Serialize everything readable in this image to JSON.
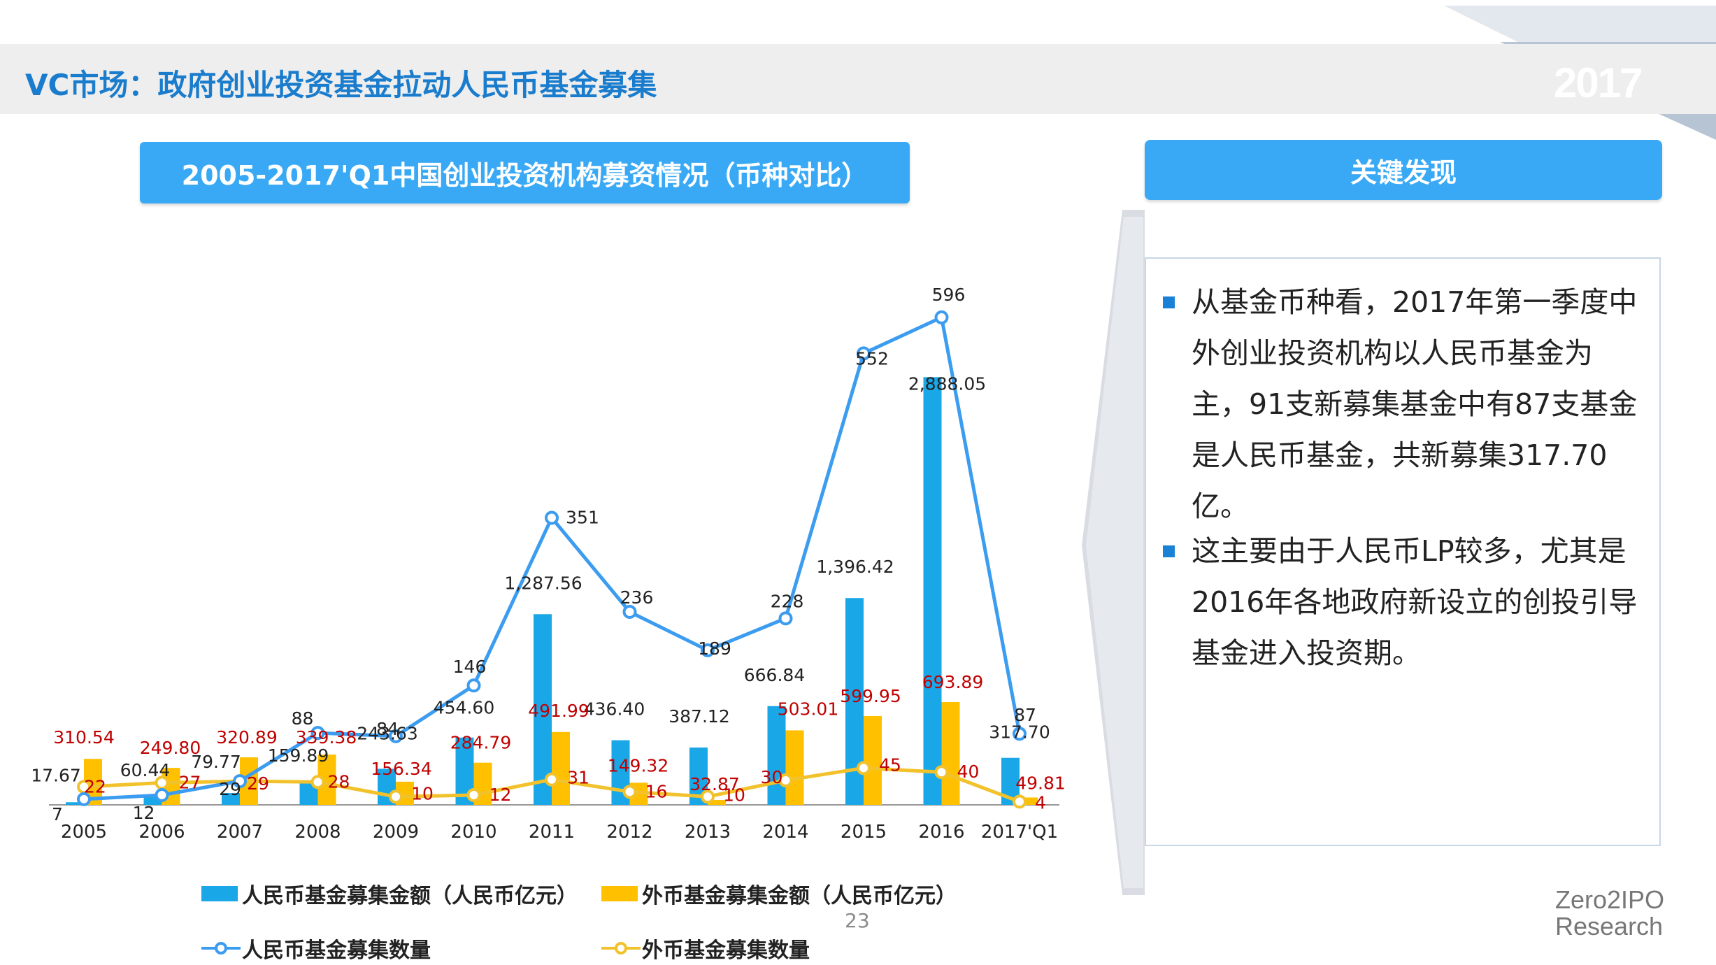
{
  "header": {
    "title": "VC市场：政府创业投资基金拉动人民币基金募集",
    "year": "2017"
  },
  "chart_title": "2005-2017'Q1中国创业投资机构募资情况（币种对比）",
  "findings": {
    "heading": "关键发现",
    "bullets": [
      "从基金币种看，2017年第一季度中外创业投资机构以人民币基金为主，91支新募集基金中有87支基金是人民币基金，共新募集317.70亿。",
      "这主要由于人民币LP较多，尤其是2016年各地政府新设立的创投引导基金进入投资期。"
    ]
  },
  "page_number": "23",
  "brand": {
    "line1": "Zero2IPO",
    "line2": "Research"
  },
  "colors": {
    "rmb": "#19a7e8",
    "foreign": "#ffc000",
    "rmb_count_line": "#3b9cf0",
    "foreign_count_line": "#f2c22d",
    "foreign_label": "#c00000",
    "title_blue": "#1a7ccc",
    "box_blue": "#39a9f5"
  },
  "chart_data": {
    "type": "bar",
    "categories": [
      "2005",
      "2006",
      "2007",
      "2008",
      "2009",
      "2010",
      "2011",
      "2012",
      "2013",
      "2014",
      "2015",
      "2016",
      "2017'Q1"
    ],
    "series": [
      {
        "name": "人民币基金募集金额（人民币亿元）",
        "type": "bar",
        "values": [
          17.67,
          60.44,
          79.77,
          159.89,
          243.63,
          454.6,
          1287.56,
          436.4,
          387.12,
          666.84,
          1396.42,
          2888.05,
          317.7
        ],
        "labels": [
          "17.67",
          "60.44",
          "79.77",
          "159.89",
          "243.63",
          "454.60",
          "1,287.56",
          "436.40",
          "387.12",
          "666.84",
          "1,396.42",
          "2,888.05",
          "317.70"
        ]
      },
      {
        "name": "外币基金募集金额（人民币亿元）",
        "type": "bar",
        "values": [
          310.54,
          249.8,
          320.89,
          339.38,
          156.34,
          284.79,
          491.99,
          149.32,
          32.87,
          503.01,
          599.95,
          693.89,
          49.81
        ],
        "labels": [
          "310.54",
          "249.80",
          "320.89",
          "339.38",
          "156.34",
          "284.79",
          "491.99",
          "149.32",
          "32.87",
          "503.01",
          "599.95",
          "693.89",
          "49.81"
        ]
      },
      {
        "name": "人民币基金募集数量",
        "type": "line",
        "values": [
          7,
          12,
          29,
          88,
          84,
          146,
          351,
          236,
          189,
          228,
          552,
          596,
          87
        ]
      },
      {
        "name": "外币基金募集数量",
        "type": "line",
        "values": [
          22,
          27,
          29,
          28,
          10,
          12,
          31,
          16,
          10,
          30,
          45,
          40,
          4
        ]
      }
    ],
    "legend_position": "bottom",
    "grid": false
  }
}
